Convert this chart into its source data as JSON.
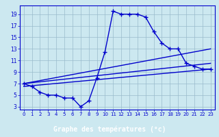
{
  "x": [
    0,
    1,
    2,
    3,
    4,
    5,
    6,
    7,
    8,
    9,
    10,
    11,
    12,
    13,
    14,
    15,
    16,
    17,
    18,
    19,
    20,
    21,
    22,
    23
  ],
  "temp_curve": [
    7,
    6.5,
    5.5,
    5,
    5,
    4.5,
    4.5,
    3,
    4,
    8,
    12.5,
    19.5,
    19,
    19,
    19,
    18.5,
    16,
    14,
    13,
    13,
    10.5,
    10,
    9.5,
    9.5
  ],
  "line2_x": [
    0,
    23
  ],
  "line2_y": [
    7,
    13
  ],
  "line3_x": [
    0,
    23
  ],
  "line3_y": [
    7,
    10.5
  ],
  "line4_x": [
    0,
    23
  ],
  "line4_y": [
    6.5,
    9.5
  ],
  "xlabel": "Graphe des températures (°c)",
  "ylim": [
    2.5,
    20.5
  ],
  "xlim": [
    -0.5,
    23.5
  ],
  "yticks": [
    3,
    5,
    7,
    9,
    11,
    13,
    15,
    17,
    19
  ],
  "xticks": [
    0,
    1,
    2,
    3,
    4,
    5,
    6,
    7,
    8,
    9,
    10,
    11,
    12,
    13,
    14,
    15,
    16,
    17,
    18,
    19,
    20,
    21,
    22,
    23
  ],
  "line_color": "#0000cc",
  "bg_color": "#cce8f0",
  "grid_color": "#99bbcc",
  "xlabel_bg": "#2244aa",
  "xlabel_color": "#ffffff"
}
